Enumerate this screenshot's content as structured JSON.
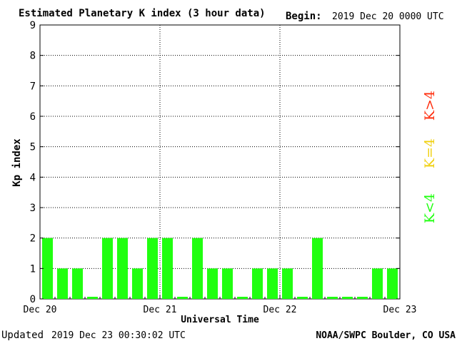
{
  "header": {
    "title": "Estimated Planetary K index (3 hour data)",
    "begin_label": "Begin:",
    "begin_value": "2019 Dec 20 0000 UTC"
  },
  "footer": {
    "updated_label": "Updated",
    "updated_value": "2019 Dec 23 00:30:02 UTC",
    "source": "NOAA/SWPC Boulder, CO USA"
  },
  "legend": {
    "above": "K>4",
    "equal": "K=4",
    "below": "K<4",
    "colors": {
      "above": "#ff3010",
      "equal": "#f0d010",
      "below": "#20ff10"
    }
  },
  "chart_data": {
    "type": "bar",
    "title": "Estimated Planetary K index (3 hour data)",
    "xlabel": "Universal Time",
    "ylabel": "Kp index",
    "ylim": [
      0,
      9
    ],
    "yticks": [
      "0",
      "1",
      "2",
      "3",
      "4",
      "5",
      "6",
      "7",
      "8",
      "9"
    ],
    "xticks": [
      "Dec 20",
      "Dec 21",
      "Dec 22",
      "Dec 23"
    ],
    "grid": true,
    "interval_hours": 3,
    "values": [
      2,
      1,
      1,
      0,
      2,
      2,
      1,
      2,
      2,
      0,
      2,
      1,
      1,
      0,
      1,
      1,
      1,
      0,
      2,
      0,
      0,
      0,
      1,
      1
    ],
    "bar_color": "#20ff10"
  }
}
